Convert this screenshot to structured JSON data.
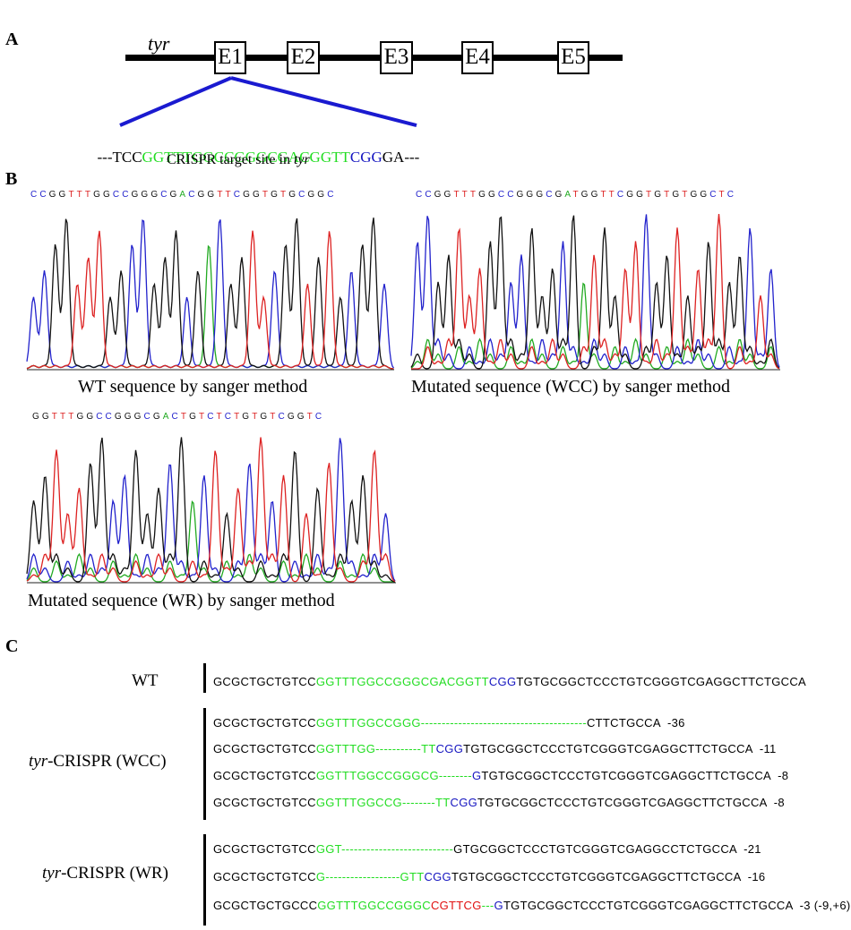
{
  "panelA": {
    "label": "A",
    "gene": "tyr",
    "exons": [
      "E1",
      "E2",
      "E3",
      "E4",
      "E5"
    ],
    "target_seq": {
      "prefix": "---TCC",
      "target": "GGTTTGGCCGGGCGACGGTT",
      "pam": "CGG",
      "suffix": "GA---"
    },
    "caption_pre": "CRISPR target site in ",
    "caption_gene": "tyr",
    "colors": {
      "target": "#22dd22",
      "pam": "#1515c0",
      "zoom": "#1a1ad0"
    }
  },
  "panelB": {
    "label": "B",
    "traces": [
      {
        "bases": "CCGGTTTGGCCGGGCGACGGTTCGGTGTGCGGC",
        "caption": "WT sequence by sanger method"
      },
      {
        "bases": "CCGGTTTGGCCGGGCGATGGTTCGGTGTGTGGCTC",
        "caption": "Mutated sequence (WCC) by sanger method"
      },
      {
        "bases": "GGTTTGGCCGGGCGACTGTCTCTGTGTCGGTC",
        "caption": "Mutated sequence (WR) by sanger method"
      }
    ],
    "base_colors": {
      "A": "#22aa22",
      "C": "#2222cc",
      "G": "#111111",
      "T": "#dd2222"
    }
  },
  "panelC": {
    "label": "C",
    "wt": {
      "name": "WT",
      "seq": [
        [
          "k",
          "GCGCTGCTGTCC"
        ],
        [
          "g",
          "GGTTTGGCCGGGCGACGGTT"
        ],
        [
          "b",
          "CGG"
        ],
        [
          "k",
          "TGTGCGGCTCCCTGTCGGGTCGAGGCTTCTGCCA"
        ]
      ]
    },
    "groups": [
      {
        "name_gene": "tyr",
        "name_rest": "-CRISPR (WCC)",
        "rows": [
          {
            "seq": [
              [
                "k",
                "GCGCTGCTGTCC"
              ],
              [
                "g",
                "GGTTTGGCCGGG----------------------------------------"
              ],
              [
                "k",
                "CTTCTGCCA"
              ]
            ],
            "delta": "-36"
          },
          {
            "seq": [
              [
                "k",
                "GCGCTGCTGTCC"
              ],
              [
                "g",
                "GGTTTGG-----------"
              ],
              [
                "g",
                "TT"
              ],
              [
                "b",
                "CGG"
              ],
              [
                "k",
                "TGTGCGGCTCCCTGTCGGGTCGAGGCTTCTGCCA"
              ]
            ],
            "delta": "-11"
          },
          {
            "seq": [
              [
                "k",
                "GCGCTGCTGTCC"
              ],
              [
                "g",
                "GGTTTGGCCGGGCG--------"
              ],
              [
                "b",
                "G"
              ],
              [
                "k",
                "TGTGCGGCTCCCTGTCGGGTCGAGGCTTCTGCCA"
              ]
            ],
            "delta": "-8"
          },
          {
            "seq": [
              [
                "k",
                "GCGCTGCTGTCC"
              ],
              [
                "g",
                "GGTTTGGCCG--------TT"
              ],
              [
                "b",
                "CGG"
              ],
              [
                "k",
                "TGTGCGGCTCCCTGTCGGGTCGAGGCTTCTGCCA"
              ]
            ],
            "delta": "-8"
          }
        ]
      },
      {
        "name_gene": "tyr",
        "name_rest": "-CRISPR (WR)",
        "rows": [
          {
            "seq": [
              [
                "k",
                "GCGCTGCTGTCC"
              ],
              [
                "g",
                "GGT---------------------------"
              ],
              [
                "k",
                "GTGCGGCTCCCTGTCGGGTCGAGGCCTCTGCCA"
              ]
            ],
            "delta": "-21"
          },
          {
            "seq": [
              [
                "k",
                "GCGCTGCTGTCC"
              ],
              [
                "g",
                "G------------------GTT"
              ],
              [
                "b",
                "CGG"
              ],
              [
                "k",
                "TGTGCGGCTCCCTGTCGGGTCGAGGCTTCTGCCA"
              ]
            ],
            "delta": "-16"
          },
          {
            "seq": [
              [
                "k",
                "GCGCTGCTGCCC"
              ],
              [
                "g",
                "GGTTTGGCCGGGC"
              ],
              [
                "r",
                "CGTTCG"
              ],
              [
                "g",
                "---"
              ],
              [
                "b",
                "G"
              ],
              [
                "k",
                "TGTGCGGCTCCCTGTCGGGTCGAGGCTTCTGCCA"
              ]
            ],
            "delta": "-3 (-9,+6)"
          }
        ]
      }
    ]
  }
}
